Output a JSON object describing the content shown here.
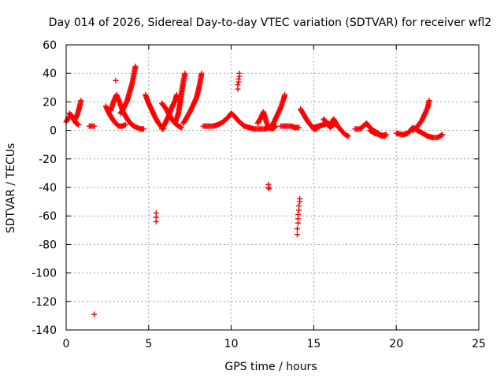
{
  "chart_data": {
    "type": "scatter",
    "title": "Day 014 of 2026, Sidereal Day-to-day VTEC variation (SDTVAR) for receiver wfl2",
    "xlabel": "GPS time / hours",
    "ylabel": "SDTVAR / TECUs",
    "xlim": [
      0,
      25
    ],
    "ylim": [
      -140,
      60
    ],
    "xticks": [
      0,
      5,
      10,
      15,
      20,
      25
    ],
    "yticks": [
      -140,
      -120,
      -100,
      -80,
      -60,
      -40,
      -20,
      0,
      20,
      40,
      60
    ],
    "grid": true,
    "marker": "plus",
    "color": "#ff0000",
    "segments": [
      [
        [
          0.0,
          6
        ],
        [
          0.15,
          9
        ],
        [
          0.3,
          11
        ],
        [
          0.45,
          8
        ],
        [
          0.6,
          5
        ],
        [
          0.75,
          4
        ]
      ],
      [
        [
          0.2,
          12
        ],
        [
          0.35,
          9
        ],
        [
          0.5,
          7
        ],
        [
          0.65,
          10
        ],
        [
          0.8,
          16
        ],
        [
          0.9,
          21
        ]
      ],
      [
        [
          1.4,
          3
        ],
        [
          1.55,
          3
        ],
        [
          1.7,
          3
        ]
      ],
      [
        [
          2.4,
          17
        ],
        [
          2.6,
          12
        ],
        [
          2.8,
          8
        ],
        [
          3.0,
          5
        ],
        [
          3.2,
          3
        ],
        [
          3.4,
          3
        ],
        [
          3.6,
          4
        ]
      ],
      [
        [
          2.7,
          14
        ],
        [
          2.9,
          21
        ],
        [
          3.05,
          25
        ],
        [
          3.2,
          21
        ],
        [
          3.35,
          16
        ],
        [
          3.5,
          12
        ],
        [
          3.7,
          8
        ],
        [
          3.9,
          5
        ],
        [
          4.1,
          3
        ],
        [
          4.3,
          2
        ],
        [
          4.5,
          1
        ],
        [
          4.7,
          1
        ]
      ],
      [
        [
          3.3,
          12
        ],
        [
          3.5,
          16
        ],
        [
          3.7,
          21
        ],
        [
          3.85,
          27
        ],
        [
          4.0,
          33
        ],
        [
          4.1,
          39
        ],
        [
          4.2,
          45
        ]
      ],
      [
        [
          4.8,
          25
        ],
        [
          5.0,
          19
        ],
        [
          5.2,
          14
        ],
        [
          5.4,
          9
        ],
        [
          5.6,
          5
        ],
        [
          5.8,
          2
        ],
        [
          5.9,
          1
        ]
      ],
      [
        [
          5.8,
          1
        ],
        [
          6.0,
          5
        ],
        [
          6.2,
          10
        ],
        [
          6.4,
          16
        ],
        [
          6.6,
          21
        ],
        [
          6.7,
          25
        ]
      ],
      [
        [
          5.8,
          19
        ],
        [
          6.0,
          16
        ],
        [
          6.2,
          12
        ],
        [
          6.4,
          8
        ],
        [
          6.6,
          5
        ],
        [
          6.8,
          3
        ],
        [
          7.0,
          2
        ]
      ],
      [
        [
          6.6,
          5
        ],
        [
          6.8,
          12
        ],
        [
          6.9,
          19
        ],
        [
          7.0,
          27
        ],
        [
          7.1,
          34
        ],
        [
          7.2,
          40
        ]
      ],
      [
        [
          7.1,
          5
        ],
        [
          7.3,
          9
        ],
        [
          7.5,
          13
        ],
        [
          7.7,
          18
        ],
        [
          7.9,
          23
        ],
        [
          8.05,
          30
        ],
        [
          8.15,
          36
        ],
        [
          8.2,
          40
        ]
      ],
      [
        [
          8.3,
          3
        ],
        [
          8.6,
          3
        ],
        [
          8.9,
          3
        ],
        [
          9.2,
          4
        ],
        [
          9.5,
          6
        ],
        [
          9.8,
          9
        ],
        [
          10.0,
          12
        ],
        [
          10.2,
          10
        ],
        [
          10.4,
          7
        ],
        [
          10.6,
          5
        ],
        [
          10.8,
          3
        ]
      ],
      [
        [
          10.8,
          3
        ],
        [
          11.1,
          2
        ],
        [
          11.4,
          1
        ],
        [
          11.7,
          1
        ],
        [
          12.0,
          1
        ],
        [
          12.3,
          2
        ],
        [
          12.5,
          1
        ],
        [
          12.7,
          3
        ]
      ],
      [
        [
          11.6,
          5
        ],
        [
          11.8,
          9
        ],
        [
          11.95,
          13
        ],
        [
          12.1,
          7
        ],
        [
          12.25,
          2
        ]
      ],
      [
        [
          12.4,
          2
        ],
        [
          12.6,
          6
        ],
        [
          12.8,
          11
        ],
        [
          13.0,
          16
        ],
        [
          13.15,
          21
        ],
        [
          13.25,
          25
        ]
      ],
      [
        [
          13.0,
          3
        ],
        [
          13.3,
          3
        ],
        [
          13.6,
          3
        ],
        [
          13.9,
          2
        ],
        [
          14.1,
          2
        ]
      ],
      [
        [
          14.2,
          15
        ],
        [
          14.4,
          11
        ],
        [
          14.6,
          7
        ],
        [
          14.8,
          4
        ],
        [
          15.0,
          1
        ],
        [
          15.2,
          1
        ]
      ],
      [
        [
          15.0,
          2
        ],
        [
          15.3,
          3
        ],
        [
          15.6,
          4
        ],
        [
          15.9,
          5
        ],
        [
          16.1,
          3
        ],
        [
          16.3,
          5
        ],
        [
          16.6,
          1
        ],
        [
          16.9,
          -3
        ],
        [
          17.1,
          -4
        ]
      ],
      [
        [
          15.6,
          8
        ],
        [
          15.8,
          5
        ],
        [
          16.0,
          2
        ],
        [
          16.2,
          8
        ],
        [
          16.4,
          4
        ]
      ],
      [
        [
          17.5,
          1
        ],
        [
          17.8,
          1
        ],
        [
          18.0,
          3
        ],
        [
          18.2,
          5
        ],
        [
          18.4,
          2
        ],
        [
          18.6,
          0
        ],
        [
          18.9,
          -2
        ],
        [
          19.1,
          -4
        ],
        [
          19.4,
          -3
        ]
      ],
      [
        [
          18.4,
          0
        ],
        [
          18.7,
          -2
        ],
        [
          19.0,
          -3
        ],
        [
          19.3,
          -4
        ]
      ],
      [
        [
          20.0,
          -2
        ],
        [
          20.4,
          -3
        ],
        [
          20.7,
          -2
        ],
        [
          21.0,
          2
        ],
        [
          21.3,
          0
        ],
        [
          21.6,
          -2
        ],
        [
          21.9,
          -4
        ],
        [
          22.2,
          -5
        ],
        [
          22.5,
          -5
        ],
        [
          22.8,
          -3
        ]
      ],
      [
        [
          21.0,
          0
        ],
        [
          21.3,
          3
        ],
        [
          21.55,
          7
        ],
        [
          21.75,
          12
        ],
        [
          21.9,
          16
        ],
        [
          22.0,
          21
        ]
      ]
    ],
    "outliers": [
      [
        1.7,
        -129
      ],
      [
        3.0,
        35
      ],
      [
        5.45,
        -58
      ],
      [
        5.45,
        -61
      ],
      [
        5.45,
        -64
      ],
      [
        10.4,
        29
      ],
      [
        10.4,
        32
      ],
      [
        10.45,
        34
      ],
      [
        10.45,
        36
      ],
      [
        10.5,
        38
      ],
      [
        10.5,
        40
      ],
      [
        12.25,
        -38
      ],
      [
        12.25,
        -40
      ],
      [
        12.3,
        -41
      ],
      [
        14.0,
        -73
      ],
      [
        14.0,
        -69
      ],
      [
        14.05,
        -65
      ],
      [
        14.05,
        -62
      ],
      [
        14.05,
        -59
      ],
      [
        14.1,
        -56
      ],
      [
        14.1,
        -53
      ],
      [
        14.15,
        -50
      ],
      [
        14.15,
        -48
      ]
    ]
  }
}
